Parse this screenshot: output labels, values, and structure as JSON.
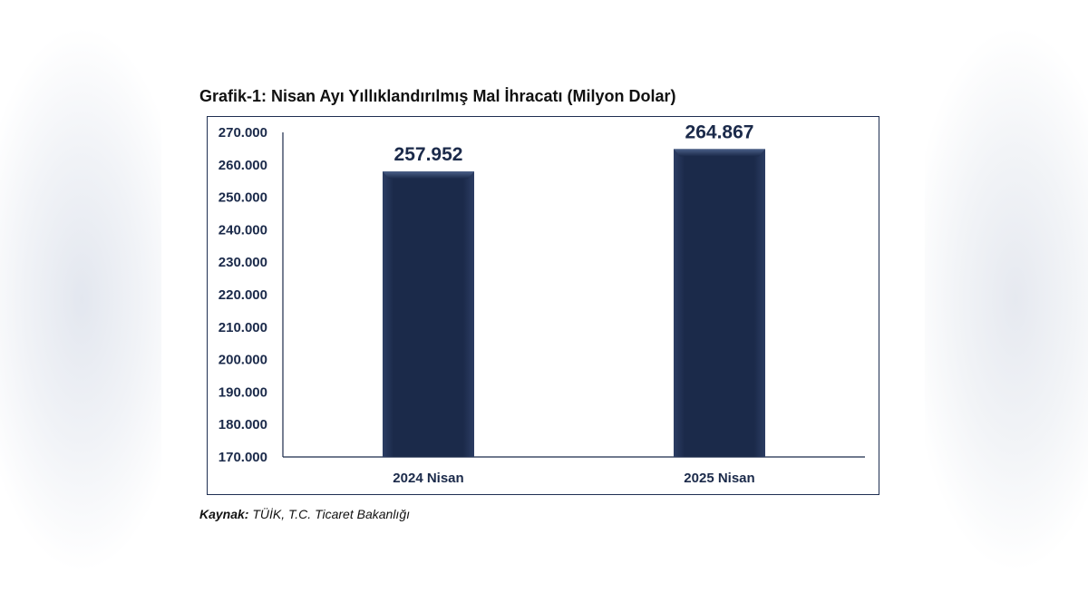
{
  "header": {
    "title": "Grafik-1: Nisan Ayı Yıllıklandırılmış Mal İhracatı (Milyon Dolar)"
  },
  "source": {
    "label": "Kaynak:",
    "text": "TÜİK, T.C. Ticaret Bakanlığı"
  },
  "colors": {
    "bar": "#1b2a4a",
    "bar_highlight": "#3a4f78",
    "text": "#1b2a4a",
    "axis": "#1b2a4a"
  },
  "chart_data": {
    "type": "bar",
    "title": "Grafik-1: Nisan Ayı Yıllıklandırılmış Mal İhracatı (Milyon Dolar)",
    "categories": [
      "2024 Nisan",
      "2025 Nisan"
    ],
    "values": [
      257952,
      264867
    ],
    "value_labels": [
      "257.952",
      "264.867"
    ],
    "ylim": [
      170000,
      270000
    ],
    "yticks": [
      170000,
      180000,
      190000,
      200000,
      210000,
      220000,
      230000,
      240000,
      250000,
      260000,
      270000
    ],
    "ytick_labels": [
      "170.000",
      "180.000",
      "190.000",
      "200.000",
      "210.000",
      "220.000",
      "230.000",
      "240.000",
      "250.000",
      "260.000",
      "270.000"
    ],
    "grid": false,
    "legend": "none"
  }
}
